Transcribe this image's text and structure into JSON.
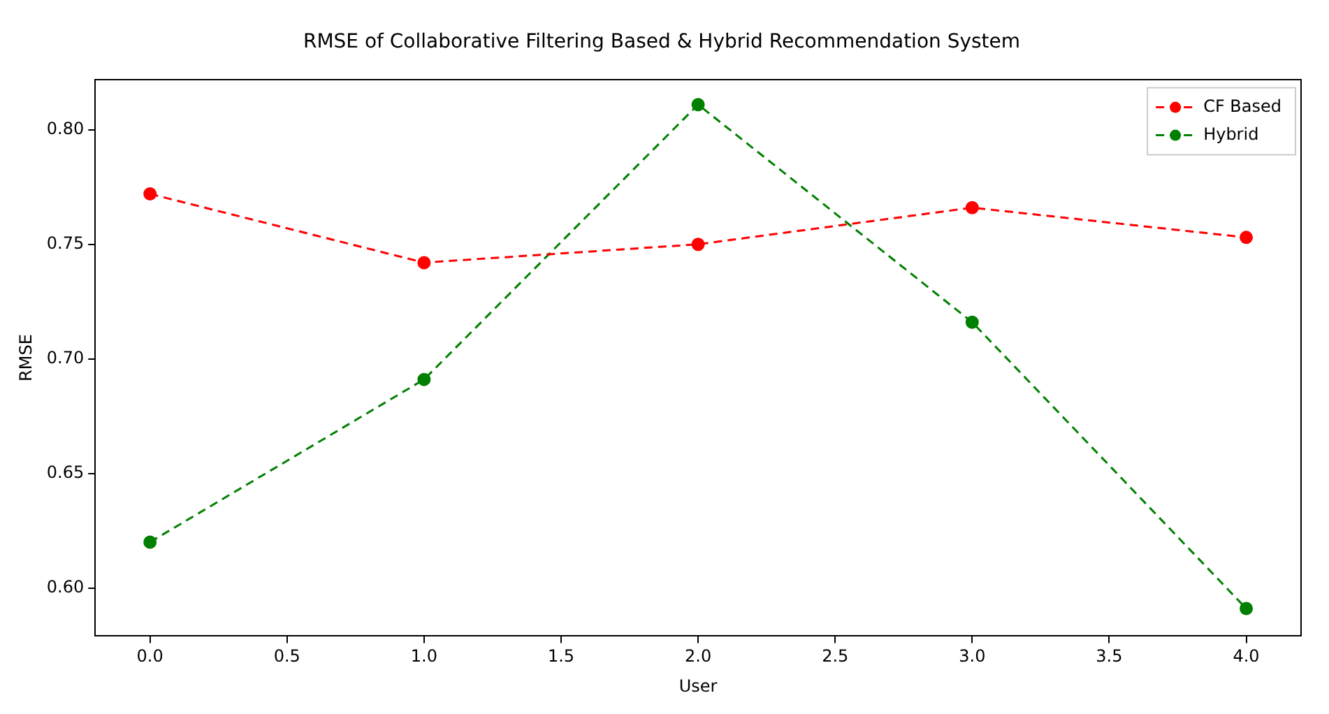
{
  "chart_data": {
    "type": "line",
    "title": "RMSE of Collaborative Filtering Based & Hybrid Recommendation System",
    "xlabel": "User",
    "ylabel": "RMSE",
    "x": [
      0,
      1,
      2,
      3,
      4
    ],
    "series": [
      {
        "name": "CF Based",
        "color": "#ff0000",
        "values": [
          0.772,
          0.742,
          0.75,
          0.766,
          0.753
        ]
      },
      {
        "name": "Hybrid",
        "color": "#008000",
        "values": [
          0.62,
          0.691,
          0.811,
          0.716,
          0.591
        ]
      }
    ],
    "xlim": [
      -0.2,
      4.2
    ],
    "ylim": [
      0.579,
      0.822
    ],
    "xticks": [
      {
        "value": 0,
        "label": "0.0"
      },
      {
        "value": 0.5,
        "label": "0.5"
      },
      {
        "value": 1,
        "label": "1.0"
      },
      {
        "value": 1.5,
        "label": "1.5"
      },
      {
        "value": 2,
        "label": "2.0"
      },
      {
        "value": 2.5,
        "label": "2.5"
      },
      {
        "value": 3,
        "label": "3.0"
      },
      {
        "value": 3.5,
        "label": "3.5"
      },
      {
        "value": 4,
        "label": "4.0"
      }
    ],
    "yticks": [
      {
        "value": 0.6,
        "label": "0.60"
      },
      {
        "value": 0.65,
        "label": "0.65"
      },
      {
        "value": 0.7,
        "label": "0.70"
      },
      {
        "value": 0.75,
        "label": "0.75"
      },
      {
        "value": 0.8,
        "label": "0.80"
      }
    ],
    "grid": false,
    "legend": "top right",
    "marker": "circle",
    "line_style": "dashed"
  }
}
